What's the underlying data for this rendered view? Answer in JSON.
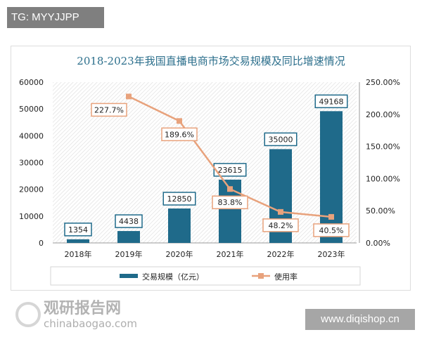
{
  "watermark_top": "TG: MYYJJPP",
  "watermark_bottom": "www.diqishop.cn",
  "logo": {
    "cn": "观研报告网",
    "en": "chinabaogao.com"
  },
  "colors": {
    "bar": "#1f6a8a",
    "line": "#e8a27c",
    "title": "#2c6f8c"
  },
  "chart_data": {
    "type": "bar+line",
    "title": "2018-2023年我国直播电商市场交易规模及同比增速情况",
    "categories": [
      "2018年",
      "2019年",
      "2020年",
      "2021年",
      "2022年",
      "2023年"
    ],
    "series": [
      {
        "name": "交易规模（亿元）",
        "type": "bar",
        "axis": "left",
        "values": [
          1354,
          4438,
          12850,
          23615,
          35000,
          49168
        ],
        "labels": [
          "1354",
          "4438",
          "12850",
          "23615",
          "35000",
          "49168"
        ]
      },
      {
        "name": "使用率",
        "type": "line",
        "axis": "right",
        "values": [
          null,
          227.7,
          189.6,
          83.8,
          48.2,
          40.5
        ],
        "labels": [
          "",
          "227.7%",
          "189.6%",
          "83.8%",
          "48.2%",
          "40.5%"
        ]
      }
    ],
    "yleft": {
      "range": [
        0,
        60000
      ],
      "ticks": [
        "0",
        "10000",
        "20000",
        "30000",
        "40000",
        "50000",
        "60000"
      ]
    },
    "yright": {
      "range": [
        0,
        250
      ],
      "ticks": [
        "0.00%",
        "50.00%",
        "100.00%",
        "150.00%",
        "200.00%",
        "250.00%"
      ]
    },
    "legend": "bottom",
    "grid": false
  }
}
